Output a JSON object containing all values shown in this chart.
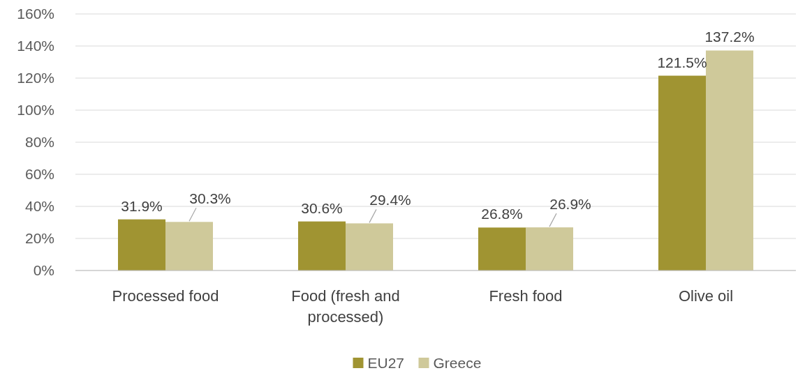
{
  "chart_data": {
    "type": "bar",
    "categories": [
      "Processed food",
      "Food (fresh and processed)",
      "Fresh food",
      "Olive oil"
    ],
    "series": [
      {
        "name": "EU27",
        "color": "#a09432",
        "values": [
          31.9,
          30.6,
          26.8,
          121.5
        ],
        "value_labels": [
          "31.9%",
          "30.6%",
          "26.8%",
          "121.5%"
        ]
      },
      {
        "name": "Greece",
        "color": "#cfc99a",
        "values": [
          30.3,
          29.4,
          26.9,
          137.2
        ],
        "value_labels": [
          "30.3%",
          "29.4%",
          "26.9%",
          "137.2%"
        ]
      }
    ],
    "ylim": [
      0,
      160
    ],
    "yticks": [
      {
        "value": 0,
        "label": "0%"
      },
      {
        "value": 20,
        "label": "20%"
      },
      {
        "value": 40,
        "label": "40%"
      },
      {
        "value": 60,
        "label": "60%"
      },
      {
        "value": 80,
        "label": "80%"
      },
      {
        "value": 100,
        "label": "100%"
      },
      {
        "value": 120,
        "label": "120%"
      },
      {
        "value": 140,
        "label": "140%"
      },
      {
        "value": 160,
        "label": "160%"
      }
    ],
    "grid": "y",
    "legend": "bottom"
  }
}
